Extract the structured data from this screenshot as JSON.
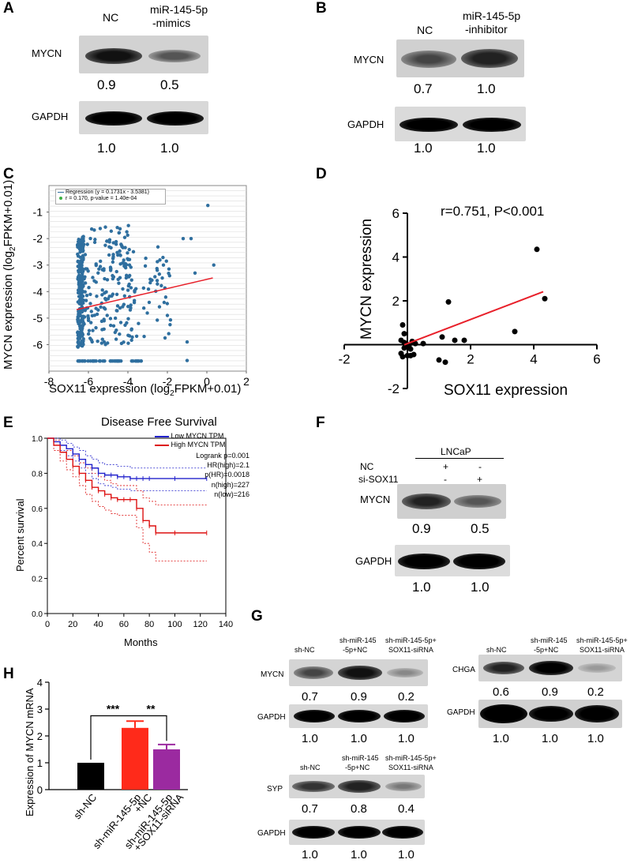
{
  "panels": {
    "A": {
      "label": "A",
      "lanes": [
        "NC",
        "miR-145-5p",
        "-mimics"
      ],
      "protein1": "MYCN",
      "values1": [
        "0.9",
        "0.5"
      ],
      "protein2": "GAPDH",
      "values2": [
        "1.0",
        "1.0"
      ]
    },
    "B": {
      "label": "B",
      "lanes": [
        "NC",
        "miR-145-5p",
        "-inhibitor"
      ],
      "protein1": "MYCN",
      "values1": [
        "0.7",
        "1.0"
      ],
      "protein2": "GAPDH",
      "values2": [
        "1.0",
        "1.0"
      ]
    },
    "C": {
      "label": "C",
      "legend_regression": "Regression (y = 0.1731x - 3.5381)",
      "legend_r": "r = 0.170, p-value = 1.40e-04",
      "ylabel_main": "MYCN expression  (log",
      "ylabel_sub": "2",
      "ylabel_end": "FPKM+0.01)",
      "xlabel_main": "SOX11 expression (log",
      "xlabel_sub": "2",
      "xlabel_end": "FPKM+0.01)"
    },
    "D": {
      "label": "D",
      "annotation": "r=0.751, P<0.001",
      "ylabel": "MYCN expression",
      "xlabel": "SOX11 expression"
    },
    "E": {
      "label": "E",
      "title": "Disease Free Survival",
      "legend_low": "Low MYCN TPM",
      "legend_high": "High MYCN TPM",
      "stats": [
        "Logrank p=0.001",
        "HR(high)=2.1",
        "p(HR)=0.0018",
        "n(high)=227",
        "n(low)=216"
      ],
      "ylabel": "Percent survival",
      "xlabel": "Months"
    },
    "F": {
      "label": "F",
      "cell": "LNCaP",
      "row1_label": "NC",
      "row1_signs": [
        "+",
        "-"
      ],
      "row2_label": "si-SOX11",
      "row2_signs": [
        "-",
        "+"
      ],
      "protein1": "MYCN",
      "values1": [
        "0.9",
        "0.5"
      ],
      "protein2": "GAPDH",
      "values2": [
        "1.0",
        "1.0"
      ]
    },
    "G": {
      "label": "G",
      "lanes": [
        "sh-NC",
        "sh-miR-145",
        "-5p+NC",
        "sh-miR-145-5p+",
        "SOX11-siRNA"
      ],
      "mycn_label": "MYCN",
      "mycn_values": [
        "0.7",
        "0.9",
        "0.2"
      ],
      "chga_label": "CHGA",
      "chga_values": [
        "0.6",
        "0.9",
        "0.2"
      ],
      "syp_label": "SYP",
      "syp_values": [
        "0.7",
        "0.8",
        "0.4"
      ],
      "gapdh_label": "GAPDH",
      "gapdh_values": [
        "1.0",
        "1.0",
        "1.0"
      ]
    },
    "H": {
      "label": "H",
      "ylabel": "Expression of MYCN mRNA",
      "sig1": "***",
      "sig2": "**"
    }
  },
  "chart_data": [
    {
      "panel": "C",
      "type": "scatter",
      "xlabel": "SOX11 expression (log2FPKM+0.01)",
      "ylabel": "MYCN expression (log2FPKM+0.01)",
      "xlim": [
        -8,
        2
      ],
      "ylim": [
        -7,
        0
      ],
      "xticks": [
        "-8",
        "-6",
        "-4",
        "-2",
        "0",
        "2"
      ],
      "yticks": [
        "-1",
        "-2",
        "-3",
        "-4",
        "-5",
        "-6"
      ],
      "regression": {
        "slope": 0.1731,
        "intercept": -3.5381,
        "x_range": [
          -6.6,
          0.3
        ]
      },
      "highlight_points": [
        [
          0.05,
          -0.75
        ],
        [
          -1.2,
          -2.0
        ],
        [
          -0.8,
          -2.0
        ],
        [
          0.35,
          -3.0
        ],
        [
          -0.6,
          -3.3
        ],
        [
          -1.0,
          -5.9
        ],
        [
          -1.0,
          -6.6
        ],
        [
          -2.0,
          -4.9
        ],
        [
          -2.2,
          -3.0
        ]
      ],
      "n_points": 500,
      "point_color": "#2f6f9f",
      "line_color": "#e8202a"
    },
    {
      "panel": "D",
      "type": "scatter",
      "xlabel": "SOX11 expression",
      "ylabel": "MYCN expression",
      "xlim": [
        -2,
        6
      ],
      "ylim": [
        -2,
        6
      ],
      "xticks": [
        "-2",
        "2",
        "4",
        "6"
      ],
      "yticks": [
        "-2",
        "2",
        "4",
        "6"
      ],
      "points": [
        [
          -0.15,
          0.9
        ],
        [
          -0.1,
          0.5
        ],
        [
          -0.2,
          0.2
        ],
        [
          -0.1,
          0.1
        ],
        [
          0.0,
          0.0
        ],
        [
          0.05,
          -0.05
        ],
        [
          -0.1,
          -0.15
        ],
        [
          0.1,
          -0.2
        ],
        [
          -0.2,
          -0.4
        ],
        [
          0.0,
          -0.5
        ],
        [
          0.1,
          -0.5
        ],
        [
          0.2,
          -0.45
        ],
        [
          -0.15,
          -0.55
        ],
        [
          0.25,
          0.05
        ],
        [
          0.15,
          0.15
        ],
        [
          0.5,
          0.05
        ],
        [
          1.0,
          -0.7
        ],
        [
          1.2,
          -0.8
        ],
        [
          1.1,
          0.35
        ],
        [
          1.3,
          1.95
        ],
        [
          1.5,
          0.2
        ],
        [
          1.8,
          0.2
        ],
        [
          3.4,
          0.6
        ],
        [
          4.1,
          4.35
        ],
        [
          4.35,
          2.1
        ]
      ],
      "regression": {
        "slope": 0.55,
        "intercept": 0.05,
        "x_range": [
          -0.1,
          4.3
        ]
      },
      "annotation": "r=0.751, P<0.001",
      "line_color": "#e8202a"
    },
    {
      "panel": "E",
      "type": "line",
      "title": "Disease Free Survival",
      "xlabel": "Months",
      "ylabel": "Percent survival",
      "xlim": [
        0,
        140
      ],
      "ylim": [
        0,
        1
      ],
      "xticks": [
        "0",
        "20",
        "40",
        "60",
        "80",
        "100",
        "120",
        "140"
      ],
      "yticks": [
        "0.0",
        "0.2",
        "0.4",
        "0.6",
        "0.8",
        "1.0"
      ],
      "series": [
        {
          "name": "Low MYCN TPM",
          "color": "#2222cc",
          "x": [
            0,
            5,
            10,
            15,
            20,
            25,
            30,
            35,
            40,
            45,
            50,
            55,
            60,
            65,
            70,
            75,
            80,
            100,
            125
          ],
          "y": [
            1.0,
            0.98,
            0.96,
            0.94,
            0.91,
            0.88,
            0.85,
            0.83,
            0.8,
            0.79,
            0.79,
            0.78,
            0.78,
            0.77,
            0.77,
            0.77,
            0.77,
            0.77,
            0.77
          ]
        },
        {
          "name": "High MYCN TPM",
          "color": "#dd1111",
          "x": [
            0,
            5,
            10,
            15,
            20,
            25,
            30,
            35,
            40,
            45,
            50,
            55,
            60,
            65,
            70,
            75,
            80,
            85,
            100,
            125
          ],
          "y": [
            1.0,
            0.96,
            0.92,
            0.88,
            0.84,
            0.8,
            0.76,
            0.72,
            0.7,
            0.68,
            0.66,
            0.65,
            0.65,
            0.65,
            0.6,
            0.53,
            0.5,
            0.46,
            0.46,
            0.46
          ]
        }
      ],
      "ci_low": {
        "color": "#2222cc",
        "upper": [
          1.0,
          1.0,
          0.99,
          0.97,
          0.95,
          0.93,
          0.9,
          0.88,
          0.86,
          0.85,
          0.85,
          0.84,
          0.84,
          0.83,
          0.83,
          0.83,
          0.83,
          0.83,
          0.83
        ],
        "lower": [
          1.0,
          0.96,
          0.93,
          0.9,
          0.87,
          0.83,
          0.8,
          0.77,
          0.74,
          0.73,
          0.72,
          0.71,
          0.71,
          0.7,
          0.7,
          0.7,
          0.7,
          0.7,
          0.7
        ]
      },
      "ci_high": {
        "color": "#dd1111",
        "upper": [
          1.0,
          0.99,
          0.96,
          0.93,
          0.9,
          0.86,
          0.83,
          0.8,
          0.78,
          0.76,
          0.74,
          0.73,
          0.73,
          0.73,
          0.7,
          0.66,
          0.64,
          0.62,
          0.62,
          0.62
        ],
        "lower": [
          1.0,
          0.93,
          0.87,
          0.82,
          0.78,
          0.73,
          0.68,
          0.64,
          0.61,
          0.59,
          0.57,
          0.56,
          0.56,
          0.56,
          0.49,
          0.4,
          0.35,
          0.3,
          0.3,
          0.3
        ]
      },
      "legend": [
        "Low MYCN TPM",
        "High MYCN TPM"
      ]
    },
    {
      "panel": "H",
      "type": "bar",
      "categories": [
        "sh-NC",
        "sh-miR-145-5p\n+NC",
        "sh-miR-145-5p\n+SOX11-siRNA"
      ],
      "category_lines": [
        [
          "sh-NC"
        ],
        [
          "sh-miR-145-5p",
          "+NC"
        ],
        [
          "sh-miR-145-5p",
          "+SOX11-siRNA"
        ]
      ],
      "values": [
        1.0,
        2.3,
        1.5
      ],
      "errors": [
        0.0,
        0.25,
        0.18
      ],
      "colors": [
        "#000000",
        "#ff2a1a",
        "#9b2aa0"
      ],
      "ylabel": "Expression of MYCN mRNA",
      "ylim": [
        0,
        4
      ],
      "yticks": [
        "0",
        "1",
        "2",
        "3",
        "4"
      ],
      "significance": [
        {
          "pair": [
            0,
            1
          ],
          "label": "***"
        },
        {
          "pair": [
            1,
            2
          ],
          "label": "**"
        }
      ]
    }
  ]
}
